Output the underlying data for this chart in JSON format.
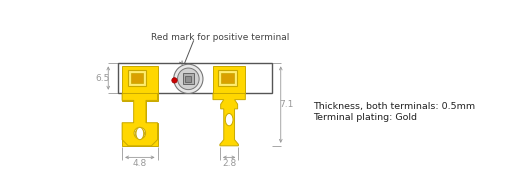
{
  "bg_color": "#ffffff",
  "gold_color": "#FFD700",
  "gold_dark": "#C8A800",
  "gray_color": "#999999",
  "line_color": "#555555",
  "red_color": "#CC0000",
  "text_color": "#333333",
  "annotation_text": "Red mark for positive terminal",
  "side_text_line1": "Thickness, both terminals: 0.5mm",
  "side_text_line2": "Terminal plating: Gold",
  "dim_65": "6.5",
  "dim_71": "7.1",
  "dim_48": "4.8",
  "dim_28": "2.8",
  "fig_width": 5.23,
  "fig_height": 1.95,
  "dpi": 100
}
